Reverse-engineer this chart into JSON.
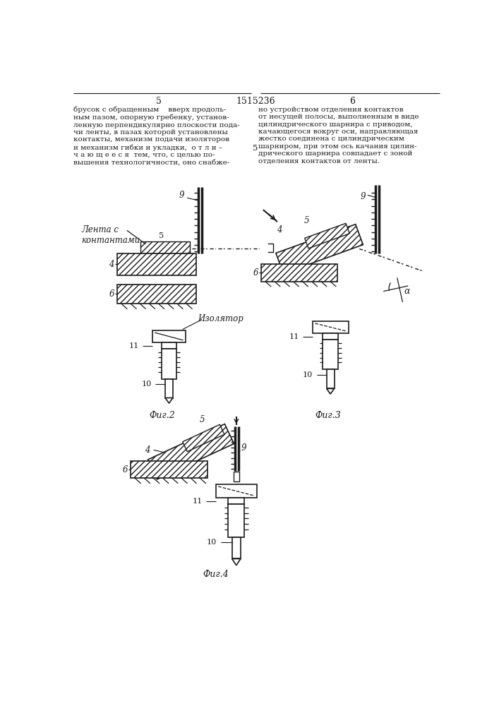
{
  "page_number_left": "5",
  "page_number_center": "1515236",
  "page_number_right": "6",
  "left_text": "брусок с обращенным    вверх продоль-\nным пазом, опорную гребенку, установ-\nленную перпендикулярно плоскости пода-\nчи ленты, в пазах которой установлены\nконтакты, механизм подачи изоляторов\nи механизм гибки и укладки,  о т л и –\nч а ю щ е е с я  тем, что, с целью по-\nвышения технологичности, оно снабже-",
  "right_text": "но устройством отделения контактов\nот несущей полосы, выполненным в виде\nцилиндрического шарнира с приводом,\nкачающегося вокруг оси, направляющая\nжестко соединена с цилиндрическим\nшарниром, при этом ось качания цилин-\nдрического шарнира совпадает с зоной\nотделения контактов от ленты.",
  "fig2_label": "Фиг.2",
  "fig3_label": "Фиг.3",
  "fig4_label": "Фиг.4",
  "bg_color": "#ffffff",
  "line_color": "#1a1a1a",
  "text_color": "#1a1a1a"
}
